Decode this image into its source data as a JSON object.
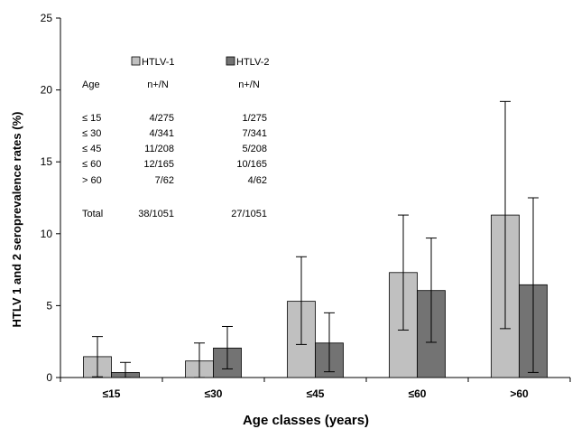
{
  "chart_data": {
    "type": "bar",
    "title": "",
    "xlabel": "Age classes (years)",
    "ylabel": "HTLV 1 and 2 seroprevalence rates (%)",
    "ylim": [
      0,
      25
    ],
    "yticks": [
      0,
      5,
      10,
      15,
      20,
      25
    ],
    "categories": [
      "≤15",
      "≤30",
      "≤45",
      "≤60",
      ">60"
    ],
    "grid": false,
    "legend_position": "top-left",
    "series": [
      {
        "name": "HTLV-1",
        "color": "#c0c0c0",
        "values": [
          1.45,
          1.15,
          5.3,
          7.3,
          11.3
        ],
        "error_low": [
          0.05,
          0.0,
          2.3,
          3.3,
          3.4
        ],
        "error_high": [
          2.85,
          2.4,
          8.4,
          11.3,
          19.2
        ]
      },
      {
        "name": "HTLV-2",
        "color": "#737373",
        "values": [
          0.35,
          2.05,
          2.4,
          6.05,
          6.45
        ],
        "error_low": [
          0.0,
          0.6,
          0.4,
          2.45,
          0.35
        ],
        "error_high": [
          1.05,
          3.55,
          4.5,
          9.7,
          12.5
        ]
      }
    ],
    "inset_table": {
      "headers": [
        "Age",
        "n+/N",
        "n+/N"
      ],
      "rows": [
        [
          "≤ 15",
          "4/275",
          "1/275"
        ],
        [
          "≤ 30",
          "4/341",
          "7/341"
        ],
        [
          "≤ 45",
          "11/208",
          "5/208"
        ],
        [
          "≤ 60",
          "12/165",
          "10/165"
        ],
        [
          "> 60",
          "7/62",
          "4/62"
        ]
      ],
      "total": [
        "Total",
        "38/1051",
        "27/1051"
      ]
    }
  }
}
